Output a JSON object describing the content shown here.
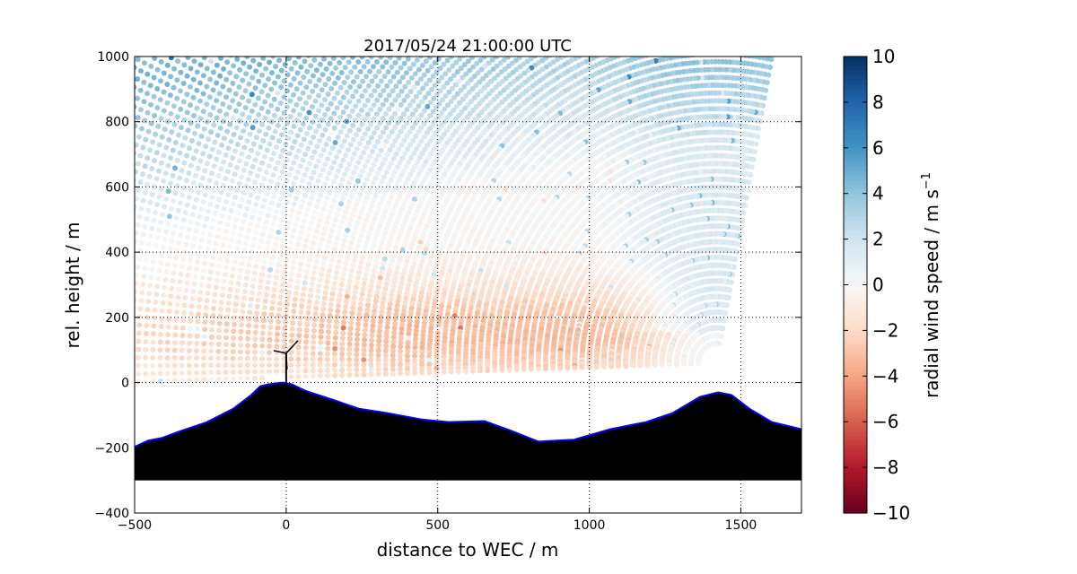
{
  "chart_data": {
    "type": "scatter",
    "title": "2017/05/24 21:00:00 UTC",
    "xlabel": "distance to WEC / m",
    "ylabel": "rel. height / m",
    "xlim": [
      -500,
      1700
    ],
    "ylim": [
      -400,
      1000
    ],
    "xticks": [
      "−500",
      "0",
      "500",
      "1000",
      "1500"
    ],
    "xtick_values": [
      -500,
      0,
      500,
      1000,
      1500
    ],
    "yticks": [
      "−400",
      "−200",
      "0",
      "200",
      "400",
      "600",
      "800",
      "1000"
    ],
    "ytick_values": [
      -400,
      -200,
      0,
      200,
      400,
      600,
      800,
      1000
    ],
    "grid": true,
    "colorbar": {
      "label": "radial wind speed / m s",
      "label_exponent": "−1",
      "range": [
        -10,
        10
      ],
      "colormap": "RdBu",
      "ticks": [
        "10",
        "8",
        "6",
        "4",
        "2",
        "0",
        "−2",
        "−4",
        "−6",
        "−8",
        "−10"
      ],
      "tick_values": [
        10,
        8,
        6,
        4,
        2,
        0,
        -2,
        -4,
        -6,
        -8,
        -10
      ]
    },
    "scan": {
      "lidar_position": [
        1420,
        60
      ],
      "min_range": 60,
      "max_range": 2200,
      "range_step": 24,
      "elevation_deg_from": 79,
      "elevation_deg_to": 182,
      "angle_step_deg": 0.75
    },
    "wind_turbine": {
      "x": 0,
      "hub_height": 90
    },
    "terrain": {
      "x": [
        -500,
        -456,
        -411,
        -352,
        -263,
        -174,
        -115,
        -85,
        -56,
        -11,
        18,
        63,
        151,
        240,
        329,
        447,
        536,
        654,
        743,
        832,
        950,
        1069,
        1188,
        1276,
        1365,
        1425,
        1469,
        1528,
        1602,
        1700
      ],
      "y": [
        -197,
        -178,
        -170,
        -150,
        -122,
        -80,
        -38,
        -11,
        -5,
        0,
        -5,
        -25,
        -52,
        -80,
        -93,
        -113,
        -121,
        -118,
        -148,
        -181,
        -175,
        -143,
        -121,
        -93,
        -44,
        -30,
        -38,
        -80,
        -121,
        -143
      ],
      "base": -300
    }
  }
}
